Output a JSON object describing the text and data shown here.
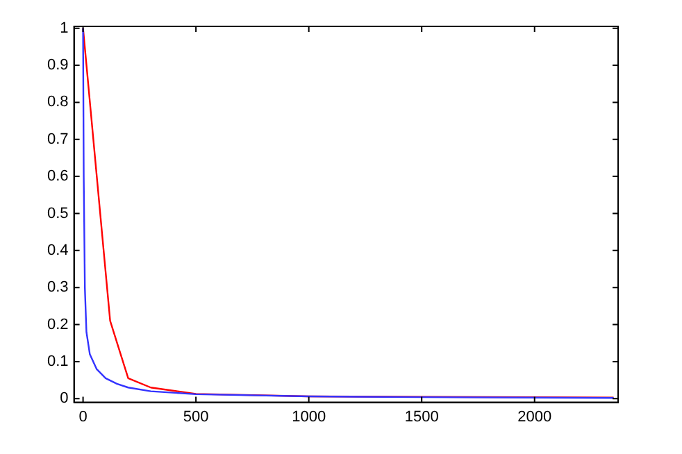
{
  "chart_data": {
    "type": "line",
    "xlim": [
      -40,
      2370
    ],
    "ylim": [
      -0.01,
      1.005
    ],
    "xticks": [
      0,
      500,
      1000,
      1500,
      2000
    ],
    "yticks": [
      0,
      0.1,
      0.2,
      0.3,
      0.4,
      0.5,
      0.6,
      0.7,
      0.8,
      0.9,
      1
    ],
    "grid": false,
    "legend": false,
    "marker": "none",
    "line_style": "solid",
    "series": [
      {
        "color": "#ff0000",
        "x": [
          0,
          120,
          200,
          300,
          500,
          1000,
          2350
        ],
        "values": [
          1,
          0.21,
          0.055,
          0.03,
          0.013,
          0.006,
          0.003
        ]
      },
      {
        "color": "#3333ff",
        "x": [
          0,
          3,
          8,
          15,
          30,
          60,
          100,
          150,
          200,
          300,
          500,
          1000,
          1500,
          2350
        ],
        "values": [
          1,
          0.6,
          0.3,
          0.18,
          0.12,
          0.08,
          0.055,
          0.04,
          0.03,
          0.02,
          0.012,
          0.006,
          0.004,
          0.002
        ]
      }
    ]
  }
}
